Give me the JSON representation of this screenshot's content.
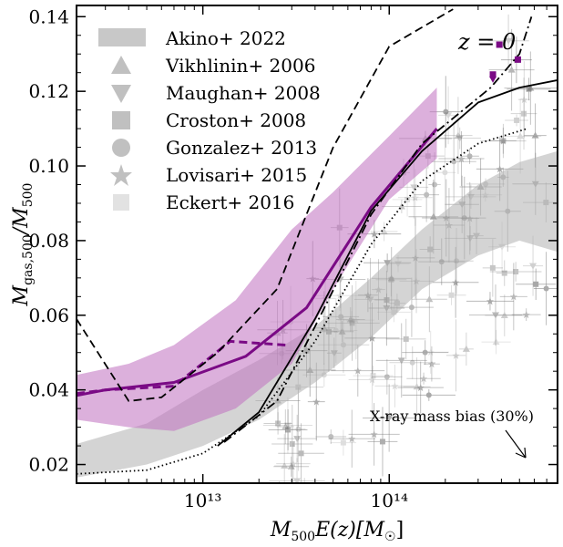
{
  "chart_data": {
    "type": "line",
    "title": "",
    "xlabel_parts": {
      "main": "M",
      "sub": "500",
      "rest": "E(z)[M",
      "sun": "☉",
      "close": "]"
    },
    "ylabel_parts": {
      "main": "M",
      "sub": "gas,500",
      "slash": "/M",
      "sub2": "500"
    },
    "x_scale": "log",
    "xlim": [
      2100000000000.0,
      800000000000000.0
    ],
    "ylim": [
      0.015,
      0.143
    ],
    "x_ticks": [
      {
        "value": 10000000000000.0,
        "label": "10¹³"
      },
      {
        "value": 100000000000000.0,
        "label": "10¹⁴"
      }
    ],
    "y_ticks": [
      {
        "value": 0.02,
        "label": "0.02"
      },
      {
        "value": 0.04,
        "label": "0.04"
      },
      {
        "value": 0.06,
        "label": "0.06"
      },
      {
        "value": 0.08,
        "label": "0.08"
      },
      {
        "value": 0.1,
        "label": "0.10"
      },
      {
        "value": 0.12,
        "label": "0.12"
      },
      {
        "value": 0.14,
        "label": "0.14"
      }
    ],
    "redshift_label": "z = 0",
    "annotation": "X-ray mass bias (30%)",
    "legend": [
      {
        "label": "Akino+ 2022",
        "marker": "band"
      },
      {
        "label": "Vikhlinin+ 2006",
        "marker": "triangle-up"
      },
      {
        "label": "Maughan+ 2008",
        "marker": "triangle-down"
      },
      {
        "label": "Croston+ 2008",
        "marker": "square"
      },
      {
        "label": "Gonzalez+ 2013",
        "marker": "circle"
      },
      {
        "label": "Lovisari+ 2015",
        "marker": "star"
      },
      {
        "label": "Eckert+ 2016",
        "marker": "square-small"
      }
    ],
    "bands": [
      {
        "name": "Akino+ 2022",
        "color": "#b0b0b0",
        "x": [
          2100000000000.0,
          5000000000000.0,
          10000000000000.0,
          20000000000000.0,
          40000000000000.0,
          80000000000000.0,
          150000000000000.0,
          300000000000000.0,
          500000000000000.0,
          800000000000000.0
        ],
        "upper": [
          0.0255,
          0.031,
          0.04,
          0.048,
          0.057,
          0.07,
          0.083,
          0.095,
          0.101,
          0.104
        ],
        "lower": [
          0.0165,
          0.02,
          0.025,
          0.032,
          0.042,
          0.054,
          0.067,
          0.076,
          0.08,
          0.077
        ]
      },
      {
        "name": "Simulation scatter",
        "color": "#c070c0",
        "x": [
          2100000000000.0,
          4000000000000.0,
          7000000000000.0,
          15000000000000.0,
          30000000000000.0,
          50000000000000.0,
          100000000000000.0,
          180000000000000.0
        ],
        "upper": [
          0.044,
          0.047,
          0.052,
          0.064,
          0.083,
          0.093,
          0.108,
          0.121
        ],
        "lower": [
          0.032,
          0.03,
          0.029,
          0.035,
          0.047,
          0.067,
          0.091,
          0.102
        ]
      }
    ],
    "series": [
      {
        "name": "purple solid",
        "color": "#7a0a85",
        "style": "solid",
        "x": [
          2100000000000.0,
          3000000000000.0,
          7000000000000.0,
          17000000000000.0,
          36000000000000.0,
          80000000000000.0,
          180000000000000.0
        ],
        "y": [
          0.0385,
          0.04,
          0.042,
          0.049,
          0.062,
          0.089,
          0.11
        ]
      },
      {
        "name": "purple dashed",
        "color": "#7a0a85",
        "style": "dashed",
        "x": [
          2100000000000.0,
          3000000000000.0,
          7000000000000.0,
          14000000000000.0,
          28000000000000.0
        ],
        "y": [
          0.039,
          0.04,
          0.041,
          0.053,
          0.052
        ]
      },
      {
        "name": "black dashed",
        "color": "#000000",
        "style": "dashed",
        "x": [
          2100000000000.0,
          4000000000000.0,
          6000000000000.0,
          12000000000000.0,
          25000000000000.0,
          38000000000000.0,
          50000000000000.0,
          100000000000000.0,
          220000000000000.0
        ],
        "y": [
          0.059,
          0.037,
          0.038,
          0.05,
          0.067,
          0.09,
          0.105,
          0.132,
          0.142
        ]
      },
      {
        "name": "black solid",
        "color": "#000000",
        "style": "solid",
        "x": [
          12000000000000.0,
          20000000000000.0,
          40000000000000.0,
          80000000000000.0,
          150000000000000.0,
          300000000000000.0,
          500000000000000.0,
          800000000000000.0
        ],
        "y": [
          0.025,
          0.034,
          0.059,
          0.088,
          0.104,
          0.117,
          0.121,
          0.123
        ]
      },
      {
        "name": "black dashdot",
        "color": "#000000",
        "style": "dashdot",
        "x": [
          13000000000000.0,
          25000000000000.0,
          40000000000000.0,
          80000000000000.0,
          150000000000000.0,
          350000000000000.0,
          500000000000000.0,
          580000000000000.0
        ],
        "y": [
          0.026,
          0.037,
          0.057,
          0.087,
          0.106,
          0.121,
          0.13,
          0.14
        ]
      },
      {
        "name": "black dotted",
        "color": "#000000",
        "style": "dotted",
        "x": [
          2100000000000.0,
          5000000000000.0,
          10000000000000.0,
          20000000000000.0,
          40000000000000.0,
          80000000000000.0,
          150000000000000.0,
          300000000000000.0,
          550000000000000.0
        ],
        "y": [
          0.0175,
          0.0185,
          0.023,
          0.033,
          0.053,
          0.079,
          0.096,
          0.106,
          0.11
        ]
      }
    ],
    "markers_purple": [
      {
        "x": 360000000000000.0,
        "y": 0.1235,
        "shape": "triangle-down"
      },
      {
        "x": 360000000000000.0,
        "y": 0.1245,
        "shape": "square"
      },
      {
        "x": 390000000000000.0,
        "y": 0.1325,
        "shape": "square"
      },
      {
        "x": 490000000000000.0,
        "y": 0.1285,
        "shape": "square"
      }
    ],
    "observations_seed": 7,
    "observations_count": 150
  }
}
